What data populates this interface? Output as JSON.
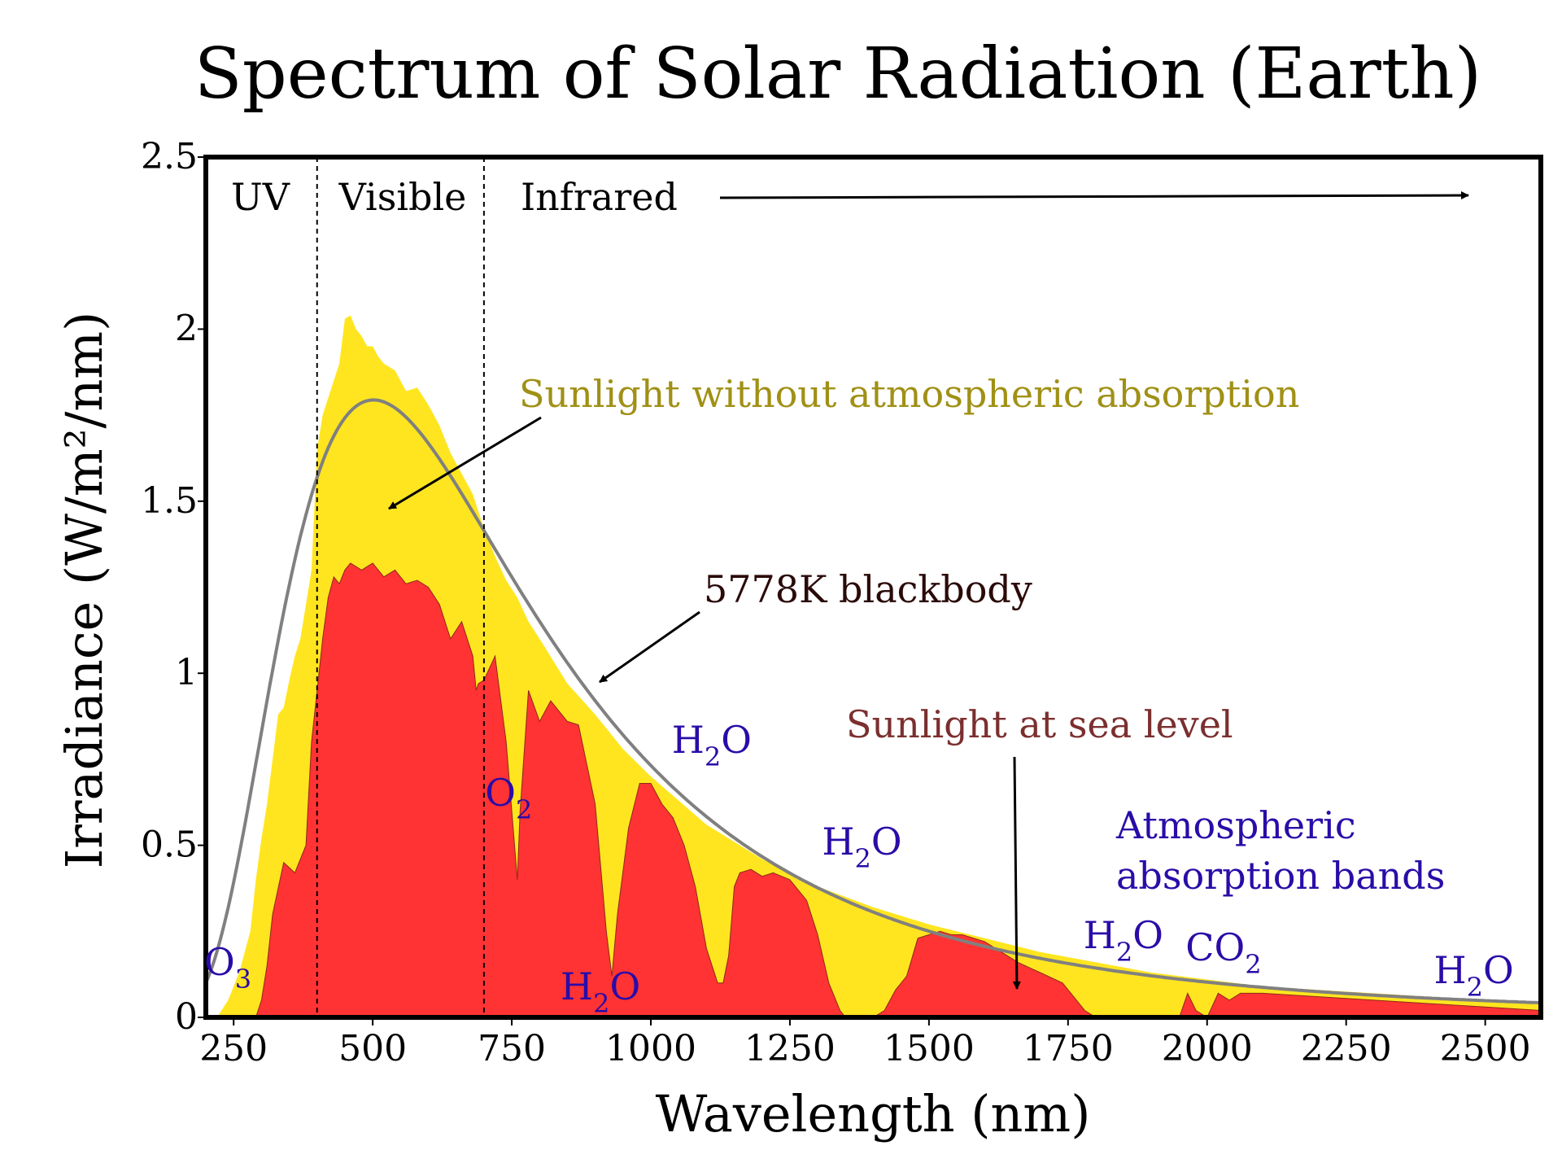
{
  "chart_data": {
    "type": "area",
    "title": "Spectrum of Solar Radiation (Earth)",
    "xlabel": "Wavelength (nm)",
    "ylabel": "Irradiance (W/m²/nm)",
    "xlim": [
      200,
      2600
    ],
    "ylim": [
      0,
      2.5
    ],
    "x_ticks": [
      250,
      500,
      750,
      1000,
      1250,
      1500,
      1750,
      2000,
      2250,
      2500
    ],
    "x_tick_labels": [
      "250",
      "500",
      "750",
      "1000",
      "1250",
      "1500",
      "1750",
      "2000",
      "2250",
      "2500"
    ],
    "y_ticks": [
      0,
      0.5,
      1,
      1.5,
      2,
      2.5
    ],
    "y_tick_labels": [
      "0",
      "0.5",
      "1",
      "1.5",
      "2",
      "2.5"
    ],
    "grid": false,
    "regions": [
      {
        "label": "UV",
        "range": [
          200,
          400
        ]
      },
      {
        "label": "Visible",
        "range": [
          400,
          700
        ]
      },
      {
        "label": "Infrared",
        "range": [
          700,
          2600
        ]
      }
    ],
    "boundaries": [
      400,
      700
    ],
    "series": [
      {
        "name": "Sunlight without atmospheric absorption",
        "color": "#ffe51f",
        "style": "filled-area",
        "x": [
          220,
          240,
          260,
          280,
          290,
          300,
          310,
          320,
          330,
          340,
          350,
          360,
          370,
          380,
          390,
          400,
          410,
          420,
          430,
          440,
          450,
          460,
          470,
          480,
          490,
          500,
          510,
          520,
          540,
          560,
          580,
          600,
          620,
          640,
          660,
          680,
          700,
          720,
          740,
          760,
          780,
          800,
          850,
          900,
          950,
          1000,
          1100,
          1200,
          1300,
          1400,
          1500,
          1600,
          1700,
          1800,
          1900,
          2000,
          2100,
          2200,
          2300,
          2400,
          2500,
          2600
        ],
        "values": [
          0.0,
          0.05,
          0.13,
          0.25,
          0.4,
          0.52,
          0.62,
          0.75,
          0.88,
          0.9,
          0.98,
          1.05,
          1.1,
          1.2,
          1.3,
          1.65,
          1.75,
          1.8,
          1.85,
          1.9,
          2.03,
          2.04,
          2.0,
          1.98,
          1.95,
          1.95,
          1.92,
          1.9,
          1.88,
          1.82,
          1.83,
          1.78,
          1.72,
          1.64,
          1.58,
          1.52,
          1.42,
          1.34,
          1.27,
          1.22,
          1.15,
          1.1,
          0.97,
          0.88,
          0.78,
          0.7,
          0.56,
          0.46,
          0.38,
          0.32,
          0.27,
          0.23,
          0.19,
          0.16,
          0.13,
          0.11,
          0.09,
          0.08,
          0.07,
          0.06,
          0.05,
          0.04
        ]
      },
      {
        "name": "Sunlight at sea level",
        "color": "#ff3333",
        "style": "filled-area",
        "x": [
          290,
          300,
          310,
          320,
          340,
          360,
          380,
          390,
          400,
          410,
          420,
          430,
          440,
          450,
          460,
          480,
          500,
          520,
          540,
          560,
          580,
          600,
          620,
          640,
          660,
          680,
          686,
          690,
          700,
          720,
          740,
          755,
          760,
          765,
          780,
          800,
          820,
          850,
          870,
          900,
          920,
          930,
          940,
          960,
          980,
          1000,
          1020,
          1040,
          1060,
          1080,
          1100,
          1120,
          1130,
          1140,
          1150,
          1160,
          1180,
          1200,
          1220,
          1250,
          1280,
          1300,
          1320,
          1340,
          1350,
          1400,
          1420,
          1440,
          1460,
          1480,
          1500,
          1520,
          1540,
          1560,
          1600,
          1620,
          1640,
          1660,
          1700,
          1740,
          1760,
          1780,
          1800,
          1950,
          1965,
          1980,
          2000,
          2020,
          2040,
          2060,
          2100,
          2200,
          2300,
          2400,
          2500,
          2600
        ],
        "values": [
          0,
          0.05,
          0.15,
          0.3,
          0.45,
          0.42,
          0.5,
          0.8,
          0.95,
          1.1,
          1.22,
          1.28,
          1.26,
          1.3,
          1.32,
          1.3,
          1.32,
          1.28,
          1.3,
          1.26,
          1.27,
          1.25,
          1.2,
          1.1,
          1.15,
          1.05,
          0.95,
          0.97,
          0.98,
          1.05,
          0.8,
          0.5,
          0.4,
          0.6,
          0.95,
          0.86,
          0.92,
          0.86,
          0.85,
          0.62,
          0.25,
          0.12,
          0.3,
          0.55,
          0.68,
          0.68,
          0.62,
          0.58,
          0.5,
          0.38,
          0.2,
          0.1,
          0.1,
          0.18,
          0.38,
          0.42,
          0.43,
          0.41,
          0.42,
          0.4,
          0.34,
          0.24,
          0.1,
          0.02,
          0.0,
          0.0,
          0.02,
          0.08,
          0.12,
          0.23,
          0.24,
          0.25,
          0.24,
          0.24,
          0.22,
          0.2,
          0.18,
          0.16,
          0.13,
          0.1,
          0.06,
          0.02,
          0.0,
          0.0,
          0.07,
          0.02,
          0.0,
          0.07,
          0.05,
          0.07,
          0.07,
          0.06,
          0.05,
          0.04,
          0.03,
          0.02
        ]
      },
      {
        "name": "5778K blackbody",
        "color": "#808080",
        "style": "line",
        "temperature_K": 5778
      }
    ],
    "annotations": {
      "region_uv": "UV",
      "region_visible": "Visible",
      "region_infrared": "Infrared",
      "no_atmosphere_label": "Sunlight without atmospheric absorption",
      "blackbody_label": "5778K blackbody",
      "sea_level_label": "Sunlight at sea level",
      "absorption_bands_line1": "Atmospheric",
      "absorption_bands_line2": "absorption bands"
    },
    "molecule_labels": [
      {
        "formula": "O",
        "sub": "3",
        "wavelength": 260
      },
      {
        "formula": "O",
        "sub": "2",
        "wavelength": 765
      },
      {
        "formula": "H",
        "sub": "2",
        "after": "O",
        "wavelength": 930
      },
      {
        "formula": "H",
        "sub": "2",
        "after": "O",
        "wavelength": 1130
      },
      {
        "formula": "H",
        "sub": "2",
        "after": "O",
        "wavelength": 1400
      },
      {
        "formula": "H",
        "sub": "2",
        "after": "O",
        "wavelength": 1870
      },
      {
        "formula": "CO",
        "sub": "2",
        "wavelength": 2050
      },
      {
        "formula": "H",
        "sub": "2",
        "after": "O",
        "wavelength": 2500
      }
    ],
    "colors": {
      "label_gold": "#a09015",
      "label_dark": "#2b0a0a",
      "label_brown": "#7b2f2f",
      "label_blue": "#2a0ca8",
      "axis": "#000000"
    }
  }
}
